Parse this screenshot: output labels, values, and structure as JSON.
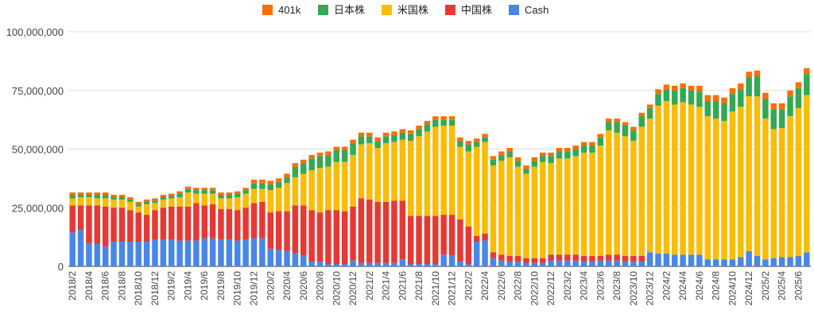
{
  "chart_data": {
    "type": "bar",
    "stacked": true,
    "title": "",
    "xlabel": "",
    "ylabel": "",
    "ylim": [
      0,
      100000000
    ],
    "yticks": [
      0,
      25000000,
      50000000,
      75000000,
      100000000
    ],
    "ytick_labels": [
      "0",
      "25,000,000",
      "50,000,000",
      "75,000,000",
      "100,000,000"
    ],
    "grid": true,
    "legend_position": "top-center",
    "x_tick_labels": [
      "2018/2",
      "2018/4",
      "2018/6",
      "2018/8",
      "2018/10",
      "2018/12",
      "2019/2",
      "2019/4",
      "2019/6",
      "2019/8",
      "2019/10",
      "2019/12",
      "2020/2",
      "2020/4",
      "2020/6",
      "2020/8",
      "2020/10",
      "2020/12",
      "2021/2",
      "2021/4",
      "2021/6",
      "2021/8",
      "2021/10",
      "2021/12",
      "2022/2",
      "2022/4",
      "2022/6",
      "2022/8",
      "2022/10",
      "2022/12",
      "2023/2",
      "2023/4",
      "2023/6",
      "2023/8",
      "2023/10",
      "2023/12",
      "2024/2",
      "2024/4",
      "2024/6",
      "2024/8",
      "2024/10",
      "2024/12",
      "2025/2",
      "2025/4",
      "2025/6"
    ],
    "categories": [
      "2018/2",
      "2018/3",
      "2018/4",
      "2018/5",
      "2018/6",
      "2018/7",
      "2018/8",
      "2018/9",
      "2018/10",
      "2018/11",
      "2018/12",
      "2019/1",
      "2019/2",
      "2019/3",
      "2019/4",
      "2019/5",
      "2019/6",
      "2019/7",
      "2019/8",
      "2019/9",
      "2019/10",
      "2019/11",
      "2019/12",
      "2020/1",
      "2020/2",
      "2020/3",
      "2020/4",
      "2020/5",
      "2020/6",
      "2020/7",
      "2020/8",
      "2020/9",
      "2020/10",
      "2020/11",
      "2020/12",
      "2021/1",
      "2021/2",
      "2021/3",
      "2021/4",
      "2021/5",
      "2021/6",
      "2021/7",
      "2021/8",
      "2021/9",
      "2021/10",
      "2021/11",
      "2021/12",
      "2022/1",
      "2022/2",
      "2022/3",
      "2022/4",
      "2022/5",
      "2022/6",
      "2022/7",
      "2022/8",
      "2022/9",
      "2022/10",
      "2022/11",
      "2022/12",
      "2023/1",
      "2023/2",
      "2023/3",
      "2023/4",
      "2023/5",
      "2023/6",
      "2023/7",
      "2023/8",
      "2023/9",
      "2023/10",
      "2023/11",
      "2023/12",
      "2024/1",
      "2024/2",
      "2024/3",
      "2024/4",
      "2024/5",
      "2024/6",
      "2024/7",
      "2024/8",
      "2024/9",
      "2024/10",
      "2024/11",
      "2024/12",
      "2025/1",
      "2025/2",
      "2025/3",
      "2025/4",
      "2025/5",
      "2025/6",
      "2025/7"
    ],
    "series": [
      {
        "name": "Cash",
        "color": "#4a86e8",
        "values": [
          14.5,
          15.5,
          10,
          9.5,
          8.5,
          10.5,
          10.5,
          10.5,
          10.5,
          10.5,
          11.5,
          11.5,
          11.5,
          11,
          11,
          11,
          12,
          12,
          11.5,
          11.5,
          11,
          11.5,
          12,
          12,
          7.5,
          7,
          6.5,
          5.5,
          4.5,
          2,
          2,
          1,
          1,
          1,
          2.5,
          1.5,
          1.5,
          1.5,
          1.5,
          1.5,
          3,
          1,
          1,
          1,
          1,
          5,
          4.5,
          2,
          1,
          10.5,
          11,
          3.5,
          2.5,
          2,
          2,
          1.5,
          1.5,
          1.5,
          2.5,
          2.5,
          2.5,
          2.5,
          2,
          2,
          2.5,
          2.5,
          2.5,
          2,
          2,
          2,
          6,
          5.5,
          5.5,
          5,
          5,
          5,
          5,
          3,
          3,
          3,
          3,
          4,
          6.5,
          4.5,
          3,
          3.5,
          4,
          4,
          4.5,
          6
        ]
      },
      {
        "name": "中国株",
        "color": "#e53935",
        "values": [
          11.5,
          10.5,
          16,
          16.5,
          17,
          14.5,
          14.5,
          13.5,
          12.5,
          11.5,
          12.5,
          13.5,
          14,
          14.5,
          14.5,
          16,
          14,
          14.5,
          13,
          13,
          13,
          13.5,
          15,
          15.5,
          15.5,
          16.5,
          17,
          20.5,
          21.5,
          22,
          21,
          23,
          23,
          22.5,
          23,
          27.5,
          27,
          26,
          26,
          26.5,
          25,
          20.5,
          20.5,
          20.5,
          20.5,
          17,
          17.5,
          18,
          16,
          2.5,
          3,
          2.5,
          2.5,
          2.5,
          2.5,
          2,
          2,
          2,
          2.5,
          2.5,
          2.5,
          2.5,
          2.5,
          2.5,
          2,
          2.5,
          2.5,
          2.5,
          2.5,
          2.5,
          0,
          0,
          0,
          0,
          0,
          0,
          0,
          0,
          0,
          0,
          0,
          0,
          0,
          0,
          0,
          0,
          0,
          0,
          0,
          0
        ]
      },
      {
        "name": "米国株",
        "color": "#fbbc04",
        "values": [
          3,
          3.5,
          3.5,
          3,
          3.5,
          3.5,
          3.5,
          3.5,
          2.5,
          4.5,
          3,
          3.5,
          3.5,
          4,
          6,
          4,
          5,
          4.5,
          4.5,
          4.5,
          5.5,
          6,
          6,
          5.5,
          9.5,
          10,
          12,
          12,
          13.5,
          17,
          19,
          18.5,
          20.5,
          21,
          22,
          23,
          24,
          23,
          25,
          25,
          26,
          32,
          34,
          36,
          38,
          38,
          38,
          31,
          32,
          38,
          39,
          37,
          40,
          42,
          38,
          36,
          39,
          41,
          39,
          41,
          41,
          42,
          44,
          44,
          47,
          53,
          52,
          51,
          49,
          55,
          57,
          63,
          65,
          64,
          65,
          64,
          63,
          61,
          60,
          59,
          63,
          64,
          66,
          68,
          60,
          55,
          55,
          60,
          63,
          67
        ]
      },
      {
        "name": "日本株",
        "color": "#34a853",
        "values": [
          1.5,
          1,
          1,
          1.5,
          1.5,
          1,
          1,
          1,
          1,
          1,
          1,
          1,
          1,
          1.5,
          1.5,
          1.5,
          1.5,
          1.5,
          1.5,
          1.5,
          1.5,
          1.5,
          2.5,
          2.5,
          2.5,
          2.5,
          2.5,
          4.5,
          4.5,
          5,
          5,
          5,
          5,
          5,
          5,
          3.5,
          3,
          3,
          3,
          3,
          3,
          3,
          3,
          3,
          3,
          2.5,
          2.5,
          2.5,
          3,
          2,
          2,
          2.5,
          2.5,
          2.5,
          2.5,
          2,
          2.5,
          2.5,
          3,
          3,
          3,
          3,
          3,
          3,
          3.5,
          3.5,
          4.5,
          4.5,
          4.5,
          4.5,
          4.5,
          5,
          5,
          6,
          6,
          6,
          6.5,
          6.5,
          7.5,
          7.5,
          7.5,
          7.5,
          8,
          8.5,
          8.5,
          8.5,
          8,
          8.5,
          8.5,
          9
        ]
      },
      {
        "name": "401k",
        "color": "#ff6d01",
        "values": [
          1,
          1,
          1,
          1,
          1,
          1,
          1,
          1,
          1,
          1,
          1,
          1,
          1,
          1,
          1,
          1,
          1,
          1,
          1,
          1,
          1,
          1,
          1.5,
          1.5,
          1.5,
          1.5,
          1.5,
          1.5,
          1.5,
          1.5,
          1.5,
          1.5,
          1.5,
          1.5,
          1.5,
          1.5,
          1.5,
          1.5,
          1.5,
          1.5,
          1.5,
          1.5,
          1.5,
          1.5,
          1.5,
          1.5,
          1.5,
          1.5,
          1.5,
          1.5,
          1.5,
          1.5,
          1.5,
          1.5,
          1.5,
          1.5,
          1.5,
          1.5,
          1.5,
          1.5,
          1.5,
          1.5,
          1.5,
          1.5,
          1.5,
          1.5,
          1.5,
          1.5,
          1.5,
          1.5,
          1.5,
          2,
          2,
          2,
          2,
          2,
          2.5,
          2.5,
          2.5,
          2.5,
          2.5,
          2.5,
          2.5,
          2.5,
          2.5,
          2.5,
          2.5,
          2.5,
          2.5,
          2.5
        ]
      }
    ],
    "value_unit_multiplier": 1000000
  }
}
